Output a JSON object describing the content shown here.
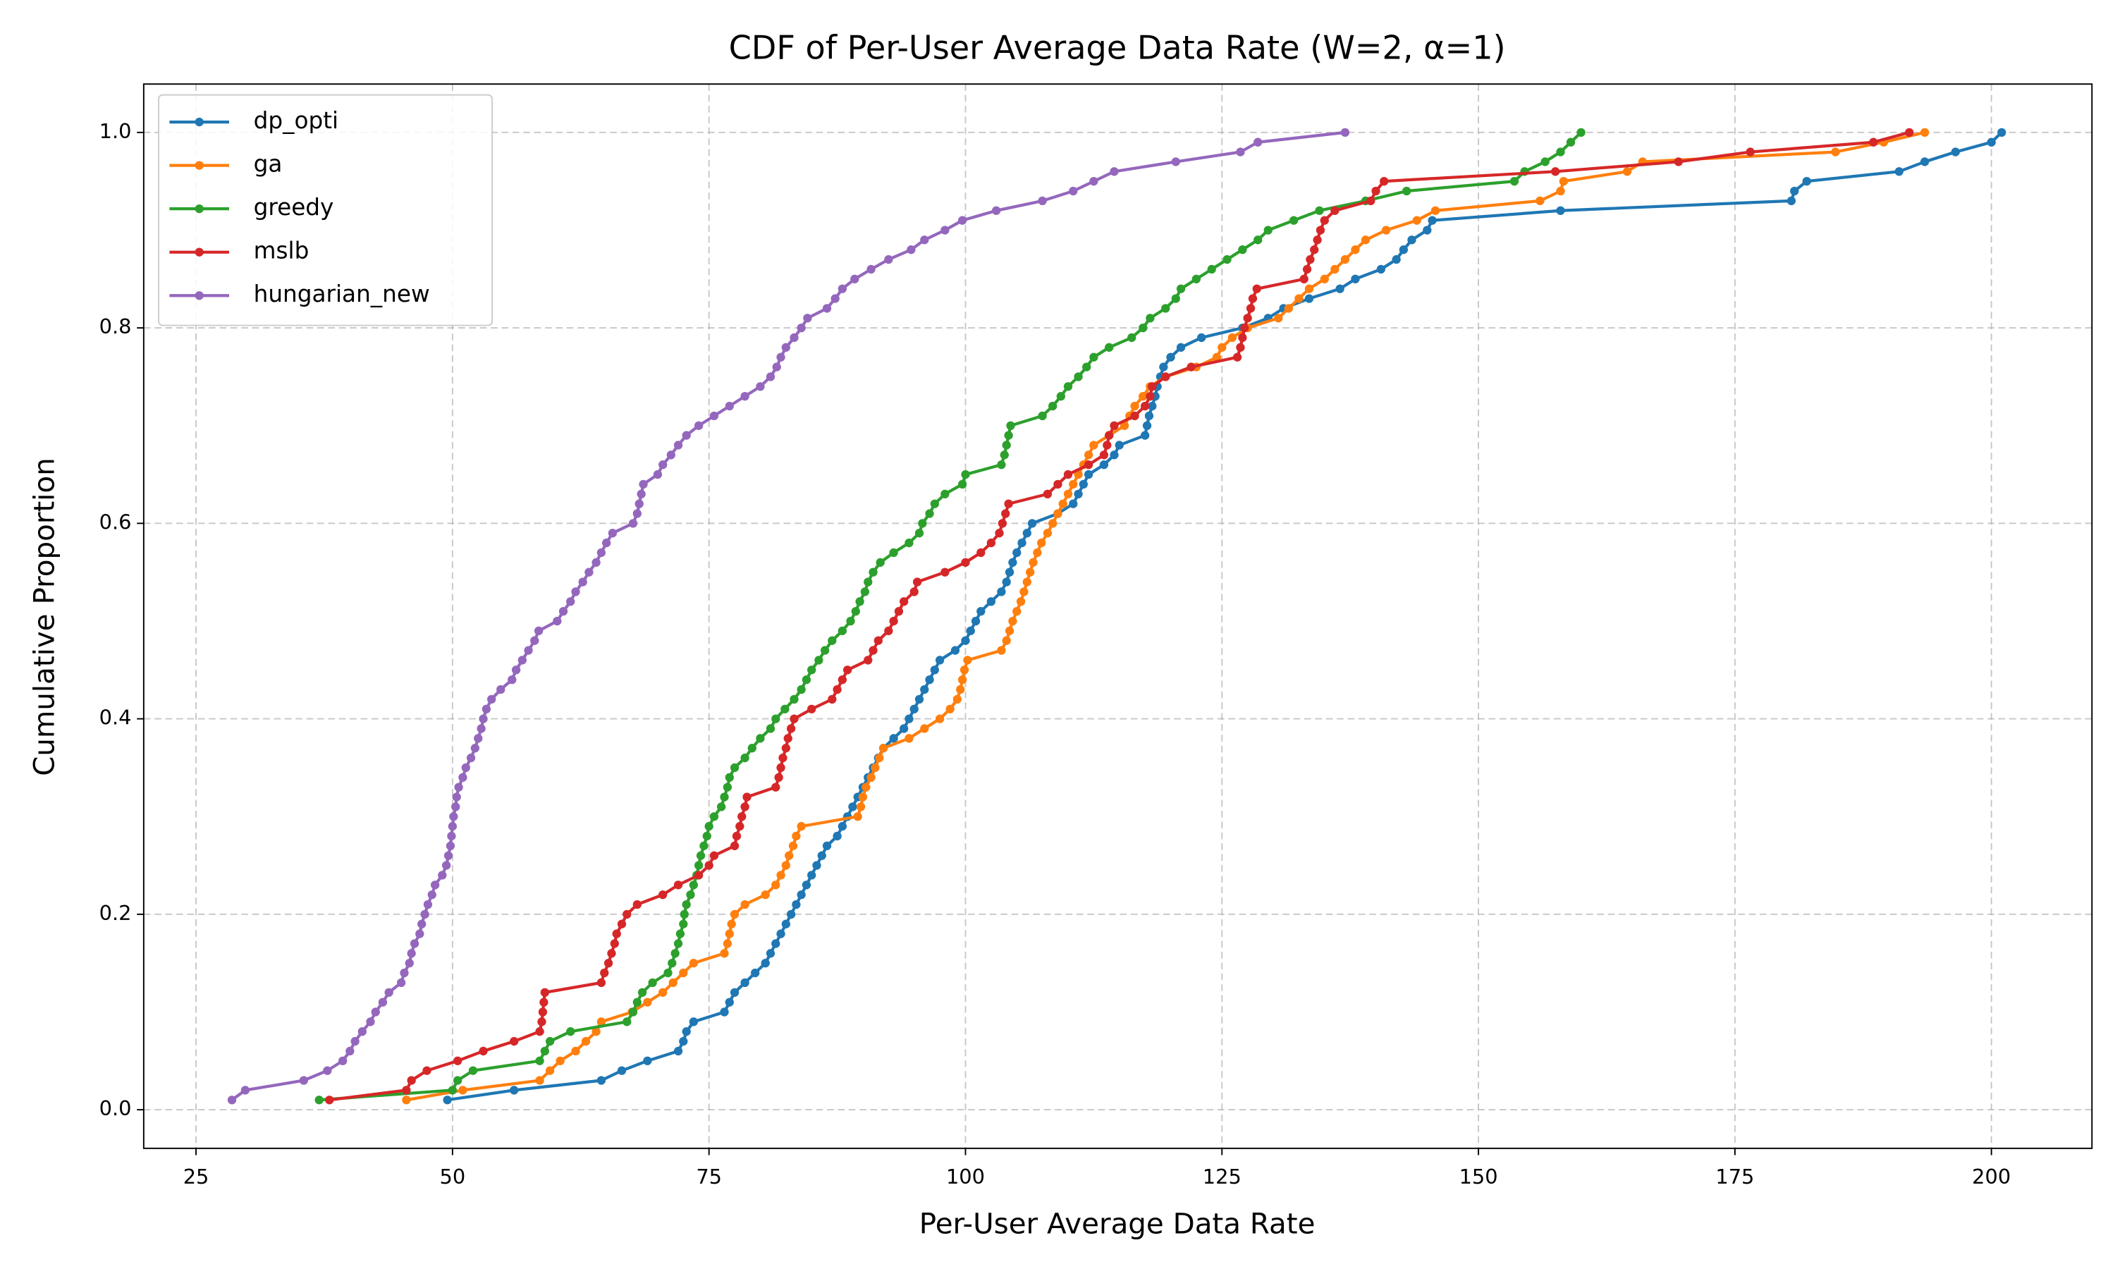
{
  "chart_data": {
    "type": "line",
    "title": "CDF of Per-User Average Data Rate (W=2, α=1)",
    "x_label": "Per-User Average Data Rate",
    "y_label": "Cumulative Proportion",
    "xlim": [
      19.9,
      209.8
    ],
    "ylim": [
      -0.0395,
      1.0495
    ],
    "xticks": [
      25,
      50,
      75,
      100,
      125,
      150,
      175,
      200
    ],
    "yticks": [
      {
        "value": 0,
        "label": "0.0"
      },
      0.2,
      0.4,
      0.6,
      0.8,
      {
        "value": 1,
        "label": "1.0"
      }
    ],
    "grid": true,
    "legend": "upper left",
    "markers": true,
    "series": [
      {
        "name": "dp_opti",
        "color": "#1f77b4",
        "x": [
          49.5,
          56.0,
          64.5,
          66.5,
          69.0,
          72.0,
          72.5,
          72.8,
          73.5,
          76.5,
          77.0,
          77.5,
          78.5,
          79.5,
          80.5,
          81.0,
          81.5,
          82.0,
          82.5,
          83.0,
          83.5,
          84.0,
          84.5,
          85.0,
          85.5,
          86.0,
          86.5,
          87.5,
          88.0,
          88.5,
          89.0,
          89.5,
          90.0,
          90.5,
          91.0,
          91.5,
          92.0,
          93.0,
          94.0,
          94.5,
          95.0,
          95.5,
          96.0,
          96.5,
          97.0,
          97.5,
          99.0,
          100.0,
          100.5,
          101.0,
          101.5,
          102.5,
          103.5,
          104.0,
          104.3,
          104.6,
          105.0,
          105.5,
          106.0,
          106.5,
          109.0,
          110.5,
          111.0,
          111.5,
          112.0,
          113.5,
          114.5,
          115.0,
          117.5,
          117.7,
          117.9,
          118.2,
          118.5,
          118.7,
          119.0,
          119.3,
          120.0,
          121.0,
          123.0,
          127.0,
          129.5,
          131.0,
          133.5,
          136.5,
          138.0,
          140.5,
          142.0,
          142.7,
          143.5,
          145.0,
          145.5,
          158.0,
          180.5,
          180.8,
          182.0,
          191.0,
          193.5,
          196.5,
          200.0,
          201.0
        ],
        "values": [
          0.01,
          0.02,
          0.03,
          0.04,
          0.05,
          0.06,
          0.07,
          0.08,
          0.09,
          0.1,
          0.11,
          0.12,
          0.13,
          0.14,
          0.15,
          0.16,
          0.17,
          0.18,
          0.19,
          0.2,
          0.21,
          0.22,
          0.23,
          0.24,
          0.25,
          0.26,
          0.27,
          0.28,
          0.29,
          0.3,
          0.31,
          0.32,
          0.33,
          0.34,
          0.35,
          0.36,
          0.37,
          0.38,
          0.39,
          0.4,
          0.41,
          0.42,
          0.43,
          0.44,
          0.45,
          0.46,
          0.47,
          0.48,
          0.49,
          0.5,
          0.51,
          0.52,
          0.53,
          0.54,
          0.55,
          0.56,
          0.57,
          0.58,
          0.59,
          0.6,
          0.61,
          0.62,
          0.63,
          0.64,
          0.65,
          0.66,
          0.67,
          0.68,
          0.69,
          0.7,
          0.71,
          0.72,
          0.73,
          0.74,
          0.75,
          0.76,
          0.77,
          0.78,
          0.79,
          0.8,
          0.81,
          0.82,
          0.83,
          0.84,
          0.85,
          0.86,
          0.87,
          0.88,
          0.89,
          0.9,
          0.91,
          0.92,
          0.93,
          0.94,
          0.95,
          0.96,
          0.97,
          0.98,
          0.99,
          1.0
        ]
      },
      {
        "name": "ga",
        "color": "#ff7f0e",
        "x": [
          45.5,
          51.0,
          58.5,
          59.5,
          60.5,
          62.0,
          63.0,
          64.0,
          64.5,
          67.5,
          69.0,
          70.5,
          71.5,
          72.5,
          73.5,
          76.5,
          76.8,
          77.0,
          77.2,
          77.5,
          78.5,
          80.5,
          81.5,
          82.0,
          82.5,
          82.8,
          83.2,
          83.5,
          84.0,
          89.5,
          89.8,
          90.0,
          90.3,
          90.8,
          91.2,
          91.6,
          92.0,
          94.5,
          96.0,
          97.5,
          98.5,
          99.2,
          99.5,
          99.7,
          99.9,
          100.2,
          103.5,
          104.0,
          104.3,
          104.6,
          105.0,
          105.4,
          105.7,
          106.0,
          106.3,
          106.6,
          107.0,
          107.4,
          108.0,
          108.5,
          109.0,
          109.5,
          110.0,
          110.5,
          111.0,
          111.5,
          112.0,
          112.5,
          114.0,
          115.5,
          116.0,
          116.5,
          117.3,
          118.0,
          119.5,
          122.5,
          124.5,
          125.0,
          126.0,
          127.5,
          130.5,
          131.5,
          132.5,
          133.5,
          135.0,
          136.0,
          137.0,
          138.0,
          139.0,
          141.0,
          144.0,
          145.8,
          156.0,
          158.0,
          158.3,
          164.5,
          166.0,
          184.8,
          189.5,
          193.5
        ],
        "values": [
          0.01,
          0.02,
          0.03,
          0.04,
          0.05,
          0.06,
          0.07,
          0.08,
          0.09,
          0.1,
          0.11,
          0.12,
          0.13,
          0.14,
          0.15,
          0.16,
          0.17,
          0.18,
          0.19,
          0.2,
          0.21,
          0.22,
          0.23,
          0.24,
          0.25,
          0.26,
          0.27,
          0.28,
          0.29,
          0.3,
          0.31,
          0.32,
          0.33,
          0.34,
          0.35,
          0.36,
          0.37,
          0.38,
          0.39,
          0.4,
          0.41,
          0.42,
          0.43,
          0.44,
          0.45,
          0.46,
          0.47,
          0.48,
          0.49,
          0.5,
          0.51,
          0.52,
          0.53,
          0.54,
          0.55,
          0.56,
          0.57,
          0.58,
          0.59,
          0.6,
          0.61,
          0.62,
          0.63,
          0.64,
          0.65,
          0.66,
          0.67,
          0.68,
          0.69,
          0.7,
          0.71,
          0.72,
          0.73,
          0.74,
          0.75,
          0.76,
          0.77,
          0.78,
          0.79,
          0.8,
          0.81,
          0.82,
          0.83,
          0.84,
          0.85,
          0.86,
          0.87,
          0.88,
          0.89,
          0.9,
          0.91,
          0.92,
          0.93,
          0.94,
          0.95,
          0.96,
          0.97,
          0.98,
          0.99,
          1.0
        ]
      },
      {
        "name": "greedy",
        "color": "#2ca02c",
        "x": [
          37.0,
          50.0,
          50.5,
          52.0,
          58.5,
          59.0,
          59.5,
          61.5,
          67.0,
          67.6,
          68.0,
          68.5,
          69.5,
          71.0,
          71.4,
          71.7,
          72.0,
          72.2,
          72.5,
          72.6,
          72.8,
          73.2,
          73.5,
          73.8,
          74.0,
          74.2,
          74.5,
          74.8,
          75.0,
          75.5,
          76.2,
          76.5,
          76.8,
          77.0,
          77.5,
          78.5,
          79.2,
          80.0,
          81.0,
          81.5,
          82.4,
          83.3,
          84.0,
          84.5,
          85.0,
          85.7,
          86.3,
          87.0,
          88.0,
          88.8,
          89.3,
          89.7,
          90.2,
          90.5,
          91.0,
          91.7,
          93.0,
          94.5,
          95.5,
          95.8,
          96.5,
          97.0,
          98.0,
          99.7,
          100.0,
          103.5,
          103.8,
          104.0,
          104.2,
          104.4,
          107.5,
          108.5,
          109.3,
          110.0,
          111.0,
          111.8,
          112.5,
          114.0,
          116.2,
          117.3,
          118.0,
          119.5,
          120.5,
          121.0,
          122.5,
          124.0,
          125.5,
          127.0,
          128.5,
          129.5,
          132.0,
          134.5,
          139.0,
          143.0,
          153.5,
          154.5,
          156.5,
          158.0,
          159.0,
          160.0
        ],
        "values": [
          0.01,
          0.02,
          0.03,
          0.04,
          0.05,
          0.06,
          0.07,
          0.08,
          0.09,
          0.1,
          0.11,
          0.12,
          0.13,
          0.14,
          0.15,
          0.16,
          0.17,
          0.18,
          0.19,
          0.2,
          0.21,
          0.22,
          0.23,
          0.24,
          0.25,
          0.26,
          0.27,
          0.28,
          0.29,
          0.3,
          0.31,
          0.32,
          0.33,
          0.34,
          0.35,
          0.36,
          0.37,
          0.38,
          0.39,
          0.4,
          0.41,
          0.42,
          0.43,
          0.44,
          0.45,
          0.46,
          0.47,
          0.48,
          0.49,
          0.5,
          0.51,
          0.52,
          0.53,
          0.54,
          0.55,
          0.56,
          0.57,
          0.58,
          0.59,
          0.6,
          0.61,
          0.62,
          0.63,
          0.64,
          0.65,
          0.66,
          0.67,
          0.68,
          0.69,
          0.7,
          0.71,
          0.72,
          0.73,
          0.74,
          0.75,
          0.76,
          0.77,
          0.78,
          0.79,
          0.8,
          0.81,
          0.82,
          0.83,
          0.84,
          0.85,
          0.86,
          0.87,
          0.88,
          0.89,
          0.9,
          0.91,
          0.92,
          0.93,
          0.94,
          0.95,
          0.96,
          0.97,
          0.98,
          0.99,
          1.0
        ]
      },
      {
        "name": "mslb",
        "color": "#d62728",
        "x": [
          38.0,
          45.5,
          46.0,
          47.5,
          50.5,
          53.0,
          56.0,
          58.5,
          58.7,
          58.8,
          58.9,
          59.0,
          64.5,
          64.8,
          65.2,
          65.5,
          65.8,
          66.0,
          66.5,
          67.0,
          68.0,
          70.5,
          72.0,
          74.0,
          75.0,
          75.5,
          77.5,
          77.7,
          78.0,
          78.2,
          78.5,
          78.7,
          81.5,
          81.8,
          82.0,
          82.2,
          82.5,
          82.7,
          83.0,
          83.3,
          85.0,
          87.0,
          87.5,
          88.0,
          88.5,
          90.5,
          91.0,
          91.5,
          92.5,
          93.0,
          93.5,
          94.0,
          95.0,
          95.3,
          98.0,
          100.0,
          101.5,
          102.5,
          103.3,
          103.6,
          103.9,
          104.2,
          108.0,
          109.0,
          110.0,
          112.0,
          113.5,
          113.8,
          114.0,
          114.5,
          116.5,
          117.5,
          118.0,
          118.2,
          119.5,
          122.0,
          126.5,
          126.8,
          127.0,
          127.2,
          127.5,
          127.8,
          128.0,
          128.4,
          133.0,
          133.3,
          133.6,
          134.0,
          134.3,
          134.6,
          135.0,
          136.0,
          139.5,
          140.0,
          140.8,
          157.5,
          169.5,
          176.5,
          188.5,
          192.0
        ],
        "values": [
          0.01,
          0.02,
          0.03,
          0.04,
          0.05,
          0.06,
          0.07,
          0.08,
          0.09,
          0.1,
          0.11,
          0.12,
          0.13,
          0.14,
          0.15,
          0.16,
          0.17,
          0.18,
          0.19,
          0.2,
          0.21,
          0.22,
          0.23,
          0.24,
          0.25,
          0.26,
          0.27,
          0.28,
          0.29,
          0.3,
          0.31,
          0.32,
          0.33,
          0.34,
          0.35,
          0.36,
          0.37,
          0.38,
          0.39,
          0.4,
          0.41,
          0.42,
          0.43,
          0.44,
          0.45,
          0.46,
          0.47,
          0.48,
          0.49,
          0.5,
          0.51,
          0.52,
          0.53,
          0.54,
          0.55,
          0.56,
          0.57,
          0.58,
          0.59,
          0.6,
          0.61,
          0.62,
          0.63,
          0.64,
          0.65,
          0.66,
          0.67,
          0.68,
          0.69,
          0.7,
          0.71,
          0.72,
          0.73,
          0.74,
          0.75,
          0.76,
          0.77,
          0.78,
          0.79,
          0.8,
          0.81,
          0.82,
          0.83,
          0.84,
          0.85,
          0.86,
          0.87,
          0.88,
          0.89,
          0.9,
          0.91,
          0.92,
          0.93,
          0.94,
          0.95,
          0.96,
          0.97,
          0.98,
          0.99,
          1.0
        ]
      },
      {
        "name": "hungarian_new",
        "color": "#9467bd",
        "x": [
          28.5,
          29.8,
          35.5,
          37.8,
          39.3,
          40.0,
          40.5,
          41.2,
          42.0,
          42.5,
          43.2,
          43.8,
          45.0,
          45.3,
          45.8,
          46.0,
          46.3,
          46.8,
          47.0,
          47.3,
          47.6,
          48.0,
          48.3,
          49.0,
          49.4,
          49.6,
          49.8,
          49.9,
          50.0,
          50.1,
          50.3,
          50.4,
          50.6,
          51.0,
          51.3,
          51.8,
          52.2,
          52.5,
          52.8,
          53.0,
          53.3,
          53.8,
          54.7,
          55.8,
          56.2,
          56.8,
          57.4,
          58.0,
          58.4,
          60.2,
          60.8,
          61.5,
          62.0,
          62.7,
          63.3,
          64.0,
          64.5,
          65.0,
          65.6,
          67.6,
          68.0,
          68.2,
          68.4,
          68.6,
          70.0,
          70.5,
          71.3,
          72.0,
          72.8,
          74.0,
          75.5,
          77.0,
          78.5,
          80.0,
          81.0,
          81.6,
          82.0,
          82.5,
          83.3,
          84.0,
          84.6,
          86.5,
          87.3,
          88.0,
          89.2,
          90.8,
          92.5,
          94.7,
          96.0,
          98.0,
          99.7,
          103.0,
          107.5,
          110.5,
          112.5,
          114.5,
          120.5,
          126.8,
          128.5,
          137.0
        ],
        "values": [
          0.01,
          0.02,
          0.03,
          0.04,
          0.05,
          0.06,
          0.07,
          0.08,
          0.09,
          0.1,
          0.11,
          0.12,
          0.13,
          0.14,
          0.15,
          0.16,
          0.17,
          0.18,
          0.19,
          0.2,
          0.21,
          0.22,
          0.23,
          0.24,
          0.25,
          0.26,
          0.27,
          0.28,
          0.29,
          0.3,
          0.31,
          0.32,
          0.33,
          0.34,
          0.35,
          0.36,
          0.37,
          0.38,
          0.39,
          0.4,
          0.41,
          0.42,
          0.43,
          0.44,
          0.45,
          0.46,
          0.47,
          0.48,
          0.49,
          0.5,
          0.51,
          0.52,
          0.53,
          0.54,
          0.55,
          0.56,
          0.57,
          0.58,
          0.59,
          0.6,
          0.61,
          0.62,
          0.63,
          0.64,
          0.65,
          0.66,
          0.67,
          0.68,
          0.69,
          0.7,
          0.71,
          0.72,
          0.73,
          0.74,
          0.75,
          0.76,
          0.77,
          0.78,
          0.79,
          0.8,
          0.81,
          0.82,
          0.83,
          0.84,
          0.85,
          0.86,
          0.87,
          0.88,
          0.89,
          0.9,
          0.91,
          0.92,
          0.93,
          0.94,
          0.95,
          0.96,
          0.97,
          0.98,
          0.99,
          1.0
        ]
      }
    ]
  }
}
